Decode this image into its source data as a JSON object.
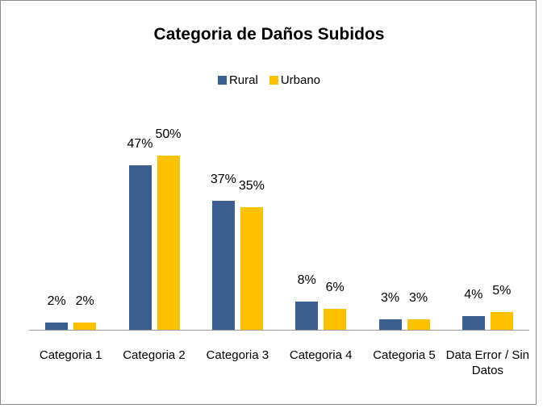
{
  "chart_data": {
    "type": "bar",
    "title": "Categoria de Daños Subidos",
    "categories": [
      "Categoria 1",
      "Categoria 2",
      "Categoria 3",
      "Categoria 4",
      "Categoria 5",
      "Data Error / Sin Datos"
    ],
    "series": [
      {
        "name": "Rural",
        "color": "#3b5f8f",
        "values": [
          2,
          47,
          37,
          8,
          3,
          4
        ],
        "value_labels": [
          "2%",
          "47%",
          "37%",
          "8%",
          "3%",
          "4%"
        ]
      },
      {
        "name": "Urbano",
        "color": "#fdc100",
        "values": [
          2,
          50,
          35,
          6,
          3,
          5
        ],
        "value_labels": [
          "2%",
          "50%",
          "35%",
          "6%",
          "3%",
          "5%"
        ]
      }
    ],
    "legend": "top"
  }
}
